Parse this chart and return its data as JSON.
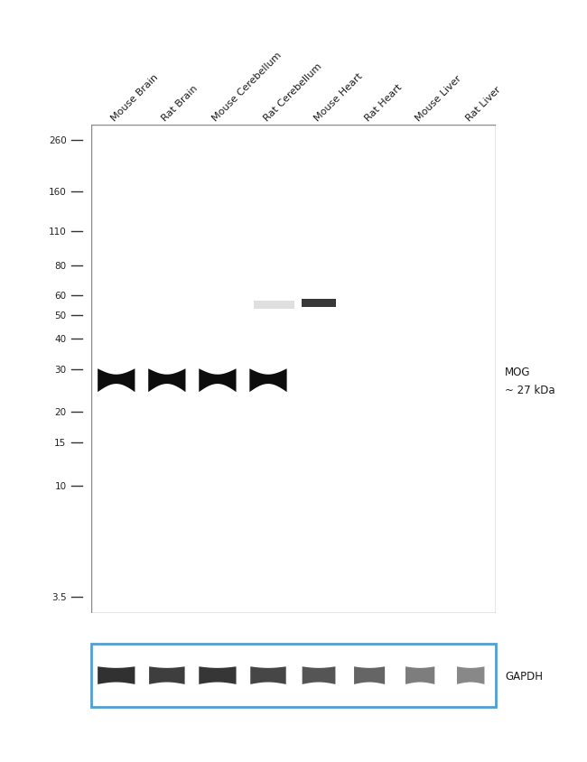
{
  "sample_labels": [
    "Mouse Brain",
    "Rat Brain",
    "Mouse Cerebellum",
    "Rat Cerebellum",
    "Mouse Heart",
    "Rat Heart",
    "Mouse Liver",
    "Rat Liver"
  ],
  "mw_markers": [
    260,
    160,
    110,
    80,
    60,
    50,
    40,
    30,
    20,
    15,
    10,
    3.5
  ],
  "panel_bg": "#e0e0e0",
  "gapdh_bg": "#d0d0d0",
  "fig_bg": "#ffffff",
  "band_color": "#0d0d0d",
  "gapdh_box_color": "#4f9fd4",
  "mog_lanes": [
    0,
    1,
    2,
    3
  ],
  "heart_band_lane": 4,
  "heart_band_kda": 56,
  "mog_kda": 27,
  "lane_count": 8,
  "mog_annotation_line1": "MOG",
  "mog_annotation_line2": "~ 27 kDa",
  "gapdh_annotation": "GAPDH",
  "tick_color": "#333333",
  "label_color": "#1a1a1a",
  "border_color": "#888888"
}
